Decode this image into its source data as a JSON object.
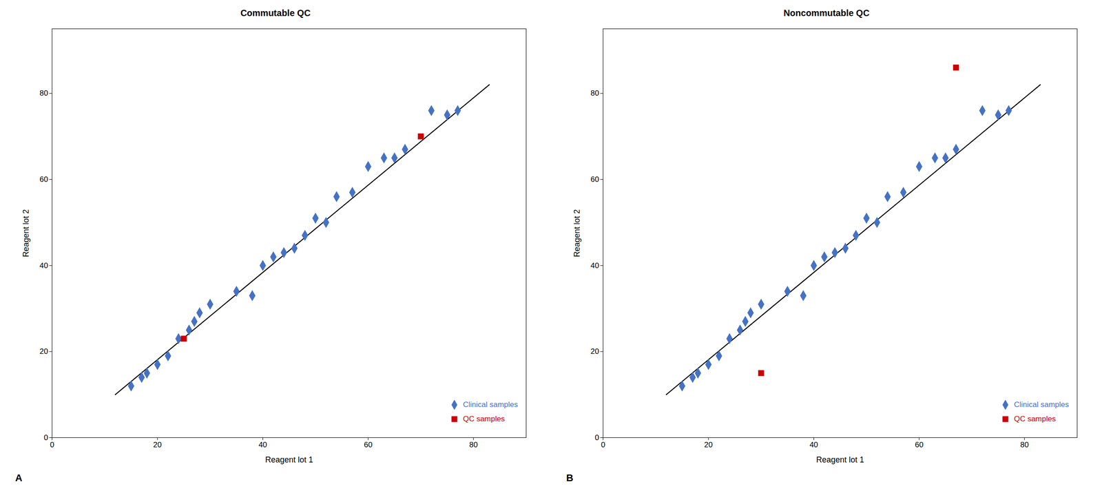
{
  "chart_data": [
    {
      "type": "scatter",
      "title": "Commutable QC",
      "annotations": [
        "A"
      ],
      "xlabel": "Reagent lot 1",
      "ylabel": "Reagent lot 2",
      "xlim": [
        0,
        90
      ],
      "ylim": [
        0,
        95
      ],
      "xticks": [
        0,
        20,
        40,
        60,
        80
      ],
      "yticks": [
        0,
        20,
        40,
        60,
        80
      ],
      "grid": false,
      "legend": "lower right",
      "series": [
        {
          "type": "line",
          "color": "#000000",
          "line_style": "solid",
          "x": [
            12,
            83
          ],
          "values": [
            10,
            82
          ]
        },
        {
          "type": "scatter",
          "name": "Clinical samples",
          "color": "#4472C4",
          "marker": "diamond",
          "x": [
            15,
            17,
            18,
            20,
            22,
            24,
            26,
            27,
            28,
            30,
            35,
            38,
            40,
            42,
            44,
            46,
            48,
            50,
            52,
            54,
            57,
            60,
            63,
            65,
            67,
            72,
            75,
            77
          ],
          "values": [
            12,
            14,
            15,
            17,
            19,
            23,
            25,
            27,
            29,
            31,
            34,
            33,
            40,
            42,
            43,
            44,
            47,
            51,
            50,
            56,
            57,
            63,
            65,
            65,
            67,
            76,
            75,
            76
          ]
        },
        {
          "type": "scatter",
          "name": "QC samples",
          "color": "#CC0000",
          "marker": "square",
          "x": [
            25,
            70
          ],
          "values": [
            23,
            70
          ]
        }
      ]
    },
    {
      "type": "scatter",
      "title": "Noncommutable QC",
      "annotations": [
        "B"
      ],
      "xlabel": "Reagent lot 1",
      "ylabel": "Reagent lot 2",
      "xlim": [
        0,
        90
      ],
      "ylim": [
        0,
        95
      ],
      "xticks": [
        0,
        20,
        40,
        60,
        80
      ],
      "yticks": [
        0,
        20,
        40,
        60,
        80
      ],
      "grid": false,
      "legend": "lower right",
      "series": [
        {
          "type": "line",
          "color": "#000000",
          "line_style": "solid",
          "x": [
            12,
            83
          ],
          "values": [
            10,
            82
          ]
        },
        {
          "type": "scatter",
          "name": "Clinical samples",
          "color": "#4472C4",
          "marker": "diamond",
          "x": [
            15,
            17,
            18,
            20,
            22,
            24,
            26,
            27,
            28,
            30,
            35,
            38,
            40,
            42,
            44,
            46,
            48,
            50,
            52,
            54,
            57,
            60,
            63,
            65,
            67,
            72,
            75,
            77
          ],
          "values": [
            12,
            14,
            15,
            17,
            19,
            23,
            25,
            27,
            29,
            31,
            34,
            33,
            40,
            42,
            43,
            44,
            47,
            51,
            50,
            56,
            57,
            63,
            65,
            65,
            67,
            76,
            75,
            76
          ]
        },
        {
          "type": "scatter",
          "name": "QC samples",
          "color": "#CC0000",
          "marker": "square",
          "x": [
            30,
            67
          ],
          "values": [
            15,
            86
          ]
        }
      ]
    }
  ]
}
